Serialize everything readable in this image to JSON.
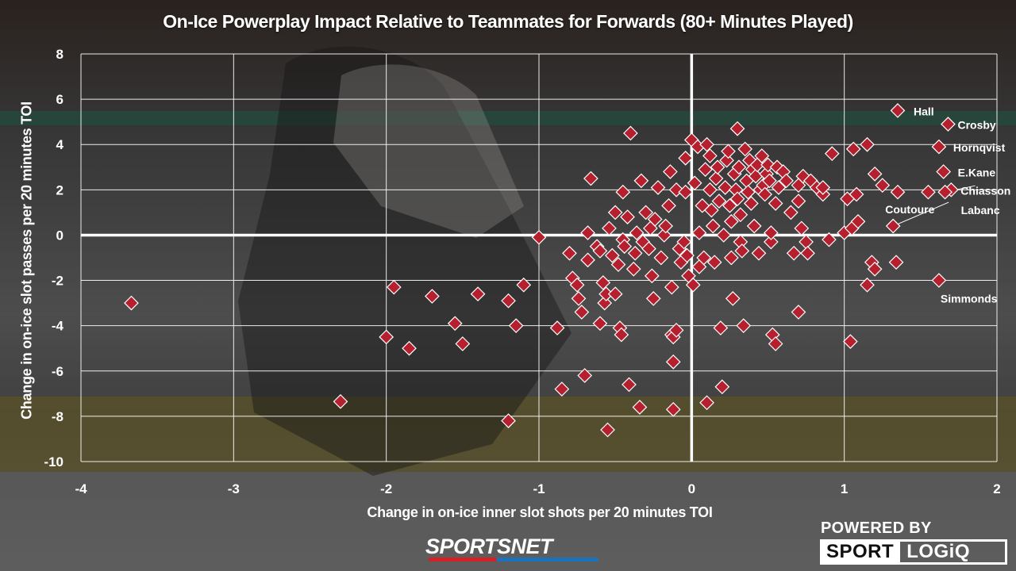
{
  "title": "On-Ice Powerplay Impact Relative to Teammates for Forwards (80+ Minutes Played)",
  "brand": {
    "network": "SPORTSNET",
    "powered_by": "POWERED BY",
    "logo_left": "SPORT",
    "logo_right": "LOGiQ"
  },
  "colors": {
    "marker": "#b51f2e",
    "marker_stroke": "#ffffff",
    "axis": "#ffffff",
    "grid": "#ffffff"
  },
  "chart_data": {
    "type": "scatter",
    "title": "On-Ice Powerplay Impact Relative to Teammates for Forwards (80+ Minutes Played)",
    "xlabel": "Change in on-ice inner slot shots per 20 minutes TOI",
    "ylabel": "Change in on-ice slot passes per 20 minutes TOI",
    "xlim": [
      -4,
      2
    ],
    "ylim": [
      -10,
      8
    ],
    "xticks": [
      -4,
      -3,
      -2,
      -1,
      0,
      1,
      2
    ],
    "yticks": [
      -10,
      -8,
      -6,
      -4,
      -2,
      0,
      2,
      4,
      6,
      8
    ],
    "grid": true,
    "marker": "diamond",
    "labeled_points": [
      {
        "name": "Hall",
        "x": 1.35,
        "y": 5.5
      },
      {
        "name": "Crosby",
        "x": 1.68,
        "y": 4.9
      },
      {
        "name": "Hornqvist",
        "x": 1.62,
        "y": 3.9
      },
      {
        "name": "E.Kane",
        "x": 1.65,
        "y": 2.8
      },
      {
        "name": "Chiasson",
        "x": 1.7,
        "y": 2.0
      },
      {
        "name": "Labanc",
        "x": 1.66,
        "y": 1.9
      },
      {
        "name": "Coutoure",
        "x": 1.32,
        "y": 0.4
      },
      {
        "name": "Simmonds",
        "x": 1.62,
        "y": -2.0
      }
    ],
    "points": [
      [
        -3.67,
        -3.0
      ],
      [
        -2.3,
        -7.35
      ],
      [
        -2.0,
        -4.5
      ],
      [
        -1.95,
        -2.3
      ],
      [
        -1.85,
        -5.0
      ],
      [
        -1.7,
        -2.7
      ],
      [
        -1.55,
        -3.9
      ],
      [
        -1.5,
        -4.8
      ],
      [
        -1.4,
        -2.6
      ],
      [
        -1.2,
        -2.9
      ],
      [
        -1.15,
        -4.0
      ],
      [
        -1.2,
        -8.2
      ],
      [
        -1.1,
        -2.2
      ],
      [
        -1.0,
        -0.1
      ],
      [
        -0.88,
        -4.1
      ],
      [
        -0.85,
        -6.8
      ],
      [
        -0.8,
        -0.8
      ],
      [
        -0.78,
        -1.9
      ],
      [
        -0.75,
        -2.2
      ],
      [
        -0.74,
        -2.8
      ],
      [
        -0.72,
        -3.4
      ],
      [
        -0.7,
        -6.2
      ],
      [
        -0.68,
        -1.1
      ],
      [
        -0.68,
        0.1
      ],
      [
        -0.66,
        2.5
      ],
      [
        -0.62,
        -0.5
      ],
      [
        -0.6,
        -0.7
      ],
      [
        -0.6,
        -3.9
      ],
      [
        -0.58,
        -2.1
      ],
      [
        -0.57,
        -3.0
      ],
      [
        -0.56,
        -2.6
      ],
      [
        -0.55,
        -8.6
      ],
      [
        -0.54,
        0.3
      ],
      [
        -0.52,
        -0.9
      ],
      [
        -0.5,
        1.0
      ],
      [
        -0.5,
        -2.6
      ],
      [
        -0.48,
        -1.3
      ],
      [
        -0.47,
        -4.1
      ],
      [
        -0.46,
        -4.4
      ],
      [
        -0.45,
        1.9
      ],
      [
        -0.45,
        -0.2
      ],
      [
        -0.44,
        -0.5
      ],
      [
        -0.42,
        0.8
      ],
      [
        -0.41,
        -6.6
      ],
      [
        -0.4,
        4.5
      ],
      [
        -0.38,
        -1.5
      ],
      [
        -0.37,
        -0.8
      ],
      [
        -0.36,
        0.1
      ],
      [
        -0.34,
        -7.6
      ],
      [
        -0.33,
        2.4
      ],
      [
        -0.32,
        -0.3
      ],
      [
        -0.3,
        1.0
      ],
      [
        -0.28,
        -0.6
      ],
      [
        -0.27,
        0.3
      ],
      [
        -0.26,
        -1.8
      ],
      [
        -0.25,
        -2.8
      ],
      [
        -0.24,
        0.7
      ],
      [
        -0.22,
        2.1
      ],
      [
        -0.2,
        -1.0
      ],
      [
        -0.18,
        0.0
      ],
      [
        -0.17,
        0.4
      ],
      [
        -0.15,
        1.3
      ],
      [
        -0.14,
        2.8
      ],
      [
        -0.13,
        -2.3
      ],
      [
        -0.13,
        -4.4
      ],
      [
        -0.12,
        -4.5
      ],
      [
        -0.12,
        -5.6
      ],
      [
        -0.12,
        -7.7
      ],
      [
        -0.1,
        -4.2
      ],
      [
        -0.1,
        2.0
      ],
      [
        -0.08,
        -0.6
      ],
      [
        -0.07,
        -1.2
      ],
      [
        -0.05,
        -0.3
      ],
      [
        -0.04,
        3.4
      ],
      [
        -0.04,
        1.9
      ],
      [
        -0.03,
        -0.9
      ],
      [
        -0.02,
        -1.8
      ],
      [
        0.0,
        4.2
      ],
      [
        0.01,
        -2.2
      ],
      [
        0.02,
        2.3
      ],
      [
        0.04,
        3.9
      ],
      [
        0.05,
        0.1
      ],
      [
        0.05,
        -1.4
      ],
      [
        0.07,
        1.3
      ],
      [
        0.08,
        -1.0
      ],
      [
        0.09,
        2.9
      ],
      [
        0.1,
        4.0
      ],
      [
        0.1,
        -7.4
      ],
      [
        0.12,
        3.5
      ],
      [
        0.12,
        2.0
      ],
      [
        0.13,
        1.1
      ],
      [
        0.14,
        0.4
      ],
      [
        0.15,
        -1.2
      ],
      [
        0.16,
        2.5
      ],
      [
        0.17,
        3.0
      ],
      [
        0.18,
        1.5
      ],
      [
        0.19,
        -4.1
      ],
      [
        0.2,
        -6.7
      ],
      [
        0.21,
        0.0
      ],
      [
        0.22,
        2.1
      ],
      [
        0.23,
        3.3
      ],
      [
        0.24,
        3.7
      ],
      [
        0.25,
        1.3
      ],
      [
        0.26,
        0.6
      ],
      [
        0.26,
        -1.0
      ],
      [
        0.27,
        -2.8
      ],
      [
        0.28,
        2.7
      ],
      [
        0.29,
        2.0
      ],
      [
        0.3,
        1.6
      ],
      [
        0.3,
        4.7
      ],
      [
        0.31,
        3.0
      ],
      [
        0.32,
        0.9
      ],
      [
        0.32,
        -0.3
      ],
      [
        0.33,
        -0.7
      ],
      [
        0.34,
        -4.0
      ],
      [
        0.35,
        3.8
      ],
      [
        0.36,
        2.4
      ],
      [
        0.37,
        1.9
      ],
      [
        0.38,
        3.3
      ],
      [
        0.39,
        1.4
      ],
      [
        0.4,
        2.9
      ],
      [
        0.41,
        0.4
      ],
      [
        0.42,
        2.6
      ],
      [
        0.43,
        3.1
      ],
      [
        0.44,
        -0.8
      ],
      [
        0.45,
        2.0
      ],
      [
        0.46,
        3.5
      ],
      [
        0.47,
        2.2
      ],
      [
        0.48,
        1.8
      ],
      [
        0.49,
        2.7
      ],
      [
        0.5,
        3.1
      ],
      [
        0.51,
        2.4
      ],
      [
        0.52,
        -0.3
      ],
      [
        0.52,
        0.1
      ],
      [
        0.53,
        -4.4
      ],
      [
        0.55,
        -4.8
      ],
      [
        0.55,
        1.4
      ],
      [
        0.56,
        3.0
      ],
      [
        0.57,
        2.1
      ],
      [
        0.6,
        2.8
      ],
      [
        0.62,
        2.4
      ],
      [
        0.65,
        1.0
      ],
      [
        0.67,
        -0.8
      ],
      [
        0.7,
        2.2
      ],
      [
        0.7,
        1.5
      ],
      [
        0.7,
        -3.4
      ],
      [
        0.72,
        0.3
      ],
      [
        0.73,
        2.6
      ],
      [
        0.75,
        -0.3
      ],
      [
        0.76,
        -0.8
      ],
      [
        0.78,
        2.4
      ],
      [
        0.82,
        2.1
      ],
      [
        0.86,
        1.8
      ],
      [
        0.86,
        2.1
      ],
      [
        0.9,
        -0.2
      ],
      [
        0.92,
        3.6
      ],
      [
        1.0,
        0.1
      ],
      [
        1.02,
        1.6
      ],
      [
        1.04,
        -4.7
      ],
      [
        1.05,
        0.3
      ],
      [
        1.06,
        3.8
      ],
      [
        1.08,
        1.8
      ],
      [
        1.09,
        0.6
      ],
      [
        1.15,
        4.0
      ],
      [
        1.15,
        -2.2
      ],
      [
        1.18,
        -1.2
      ],
      [
        1.2,
        -1.5
      ],
      [
        1.2,
        2.7
      ],
      [
        1.25,
        2.2
      ],
      [
        1.34,
        -1.2
      ],
      [
        1.35,
        1.9
      ],
      [
        1.55,
        1.9
      ]
    ]
  }
}
